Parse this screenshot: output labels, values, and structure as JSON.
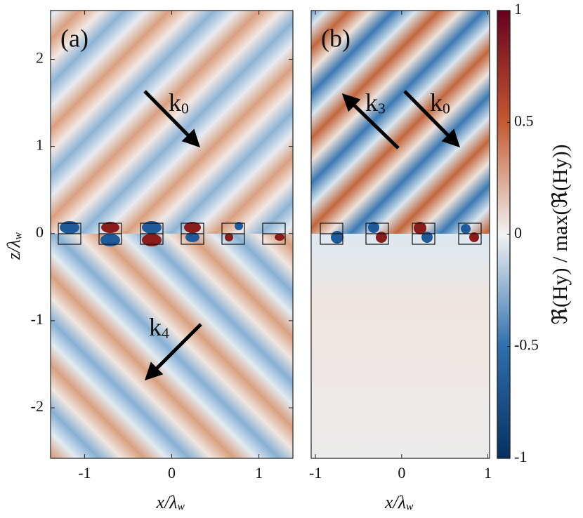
{
  "chart_data": [
    {
      "type": "heatmap",
      "label": "(a)",
      "xlabel": "x/λ",
      "xlabel_sub": "w",
      "ylabel": "z/λ",
      "ylabel_sub": "w",
      "xlim": [
        -1.39,
        1.39
      ],
      "ylim": [
        -2.58,
        2.56
      ],
      "xticks": [
        -1,
        0,
        1
      ],
      "yticks": [
        -2,
        -1,
        0,
        1,
        2
      ],
      "annotations": [
        {
          "text": "k",
          "sub": "0"
        },
        {
          "text": "k",
          "sub": "4"
        }
      ]
    },
    {
      "type": "heatmap",
      "label": "(b)",
      "xlabel": "x/λ",
      "xlabel_sub": "w",
      "xlim": [
        -1.05,
        1.02
      ],
      "ylim": [
        -2.58,
        2.56
      ],
      "xticks": [
        -1,
        0,
        1
      ],
      "annotations": [
        {
          "text": "k",
          "sub": "3"
        },
        {
          "text": "k",
          "sub": "0"
        }
      ]
    }
  ],
  "colorbar": {
    "label": "ℜ(Hy) / max(ℜ(Hy))",
    "lim": [
      -1,
      1
    ],
    "ticks": [
      -1,
      -0.5,
      0,
      0.5,
      1
    ]
  }
}
